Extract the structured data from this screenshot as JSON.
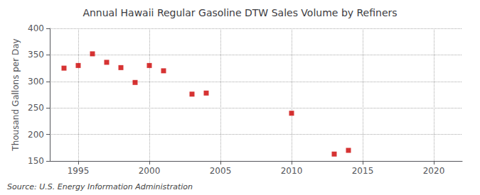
{
  "chart_data": {
    "type": "scatter",
    "title": "Annual Hawaii Regular Gasoline DTW Sales Volume by Refiners",
    "ylabel": "Thousand Gallons per Day",
    "annotation": "Source: U.S. Energy Information Administration",
    "x": [
      1994,
      1995,
      1996,
      1997,
      1998,
      1999,
      2000,
      2001,
      2003,
      2004,
      2010,
      2013,
      2014
    ],
    "values": [
      325,
      330,
      352,
      336,
      326,
      298,
      330,
      320,
      276,
      278,
      240,
      163,
      170
    ],
    "color": "#cc0000",
    "marker": "square",
    "xlim": [
      1993,
      2022
    ],
    "ylim": [
      150,
      400
    ],
    "xticks": [
      1995,
      2000,
      2005,
      2010,
      2015,
      2020
    ],
    "yticks": [
      150,
      200,
      250,
      300,
      350,
      400
    ],
    "grid": true
  }
}
